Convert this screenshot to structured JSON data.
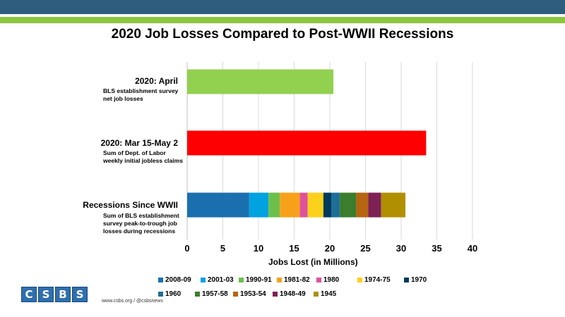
{
  "title": "2020 Job Losses Compared to Post-WWII Recessions",
  "categories": [
    {
      "label": "2020: April",
      "desc": [
        "BLS establishment survey",
        "net job losses"
      ]
    },
    {
      "label": "2020: Mar 15-May 2",
      "desc": [
        "Sum of Dept. of Labor",
        "weekly initial jobless claims"
      ]
    },
    {
      "label": "Recessions Since WWII",
      "desc": [
        "Sum of BLS establishment",
        "survey peak-to-trough job",
        "losses during recessions"
      ]
    }
  ],
  "chart_data": {
    "type": "bar",
    "orientation": "horizontal",
    "stacked": true,
    "title": "2020 Job Losses Compared to Post-WWII Recessions",
    "xlabel": "Jobs Lost (in Millions)",
    "xlim": [
      0,
      40
    ],
    "xticks": [
      0,
      5,
      10,
      15,
      20,
      25,
      30,
      35,
      40
    ],
    "grid": true,
    "categories": [
      "2020: April",
      "2020: Mar 15-May 2",
      "Recessions Since WWII"
    ],
    "bars": [
      {
        "category": "2020: April",
        "value": 20.5,
        "color": "#92d050"
      },
      {
        "category": "2020: Mar 15-May 2",
        "value": 33.5,
        "color": "#ff0000"
      }
    ],
    "stack_category": "Recessions Since WWII",
    "series": [
      {
        "name": "2008-09",
        "value": 8.7,
        "color": "#1a6faf"
      },
      {
        "name": "2001-03",
        "value": 2.7,
        "color": "#00a2e0"
      },
      {
        "name": "1990-91",
        "value": 1.6,
        "color": "#6cc04a"
      },
      {
        "name": "1981-82",
        "value": 2.8,
        "color": "#f7a11a"
      },
      {
        "name": "1980",
        "value": 1.1,
        "color": "#e0519b"
      },
      {
        "name": "1974-75",
        "value": 2.2,
        "color": "#fbd11b"
      },
      {
        "name": "1970",
        "value": 1.1,
        "color": "#003a5c"
      },
      {
        "name": "1960",
        "value": 1.2,
        "color": "#1d6f99"
      },
      {
        "name": "1957-58",
        "value": 2.3,
        "color": "#3a7d2c"
      },
      {
        "name": "1953-54",
        "value": 1.7,
        "color": "#b5650f"
      },
      {
        "name": "1948-49",
        "value": 1.8,
        "color": "#7d2157"
      },
      {
        "name": "1945",
        "value": 3.4,
        "color": "#b09000"
      }
    ],
    "legend_position": "bottom"
  },
  "footer": "www.csbs.org  /  @csbsnews",
  "logo_letters": [
    "C",
    "S",
    "B",
    "S"
  ],
  "colors": {
    "top_band": "#2f5d7e",
    "green_band": "#8cc63f",
    "grid": "#d9d9d9"
  }
}
